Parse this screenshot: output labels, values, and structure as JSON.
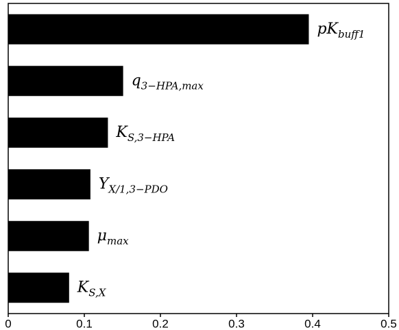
{
  "chart_data": {
    "type": "barh",
    "categories": [
      {
        "base": "pK",
        "sub": "buff1"
      },
      {
        "base": "q",
        "sub": "3−HPA,max"
      },
      {
        "base": "K",
        "sub": "S,3−HPA"
      },
      {
        "base": "Y",
        "sub": "X/1,3−PDO"
      },
      {
        "base": "μ",
        "sub": "max"
      },
      {
        "base": "K",
        "sub": "S,X"
      }
    ],
    "values": [
      0.395,
      0.151,
      0.131,
      0.108,
      0.106,
      0.08
    ],
    "color": "#000000",
    "xlim": [
      0,
      0.5
    ],
    "xticks": [
      0,
      0.1,
      0.2,
      0.3,
      0.4,
      0.5
    ]
  }
}
